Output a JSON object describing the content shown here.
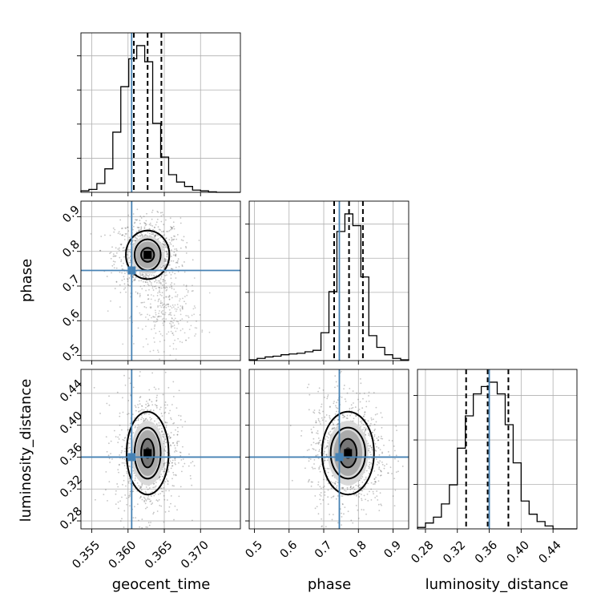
{
  "chart_data": {
    "type": "corner",
    "parameters": [
      "geocent_time",
      "phase",
      "luminosity_distance"
    ],
    "truths": {
      "geocent_time": 0.3605,
      "phase": 0.745,
      "luminosity_distance": 0.36
    },
    "truth_color": "#4682b4",
    "ranges": {
      "geocent_time": [
        0.3535,
        0.3755
      ],
      "phase": [
        0.485,
        0.945
      ],
      "luminosity_distance": [
        0.27,
        0.47
      ]
    },
    "ticks": {
      "geocent_time": [
        "0.355",
        "0.360",
        "0.365",
        "0.370"
      ],
      "phase": [
        "0.5",
        "0.6",
        "0.7",
        "0.8",
        "0.9"
      ],
      "luminosity_distance": [
        "0.28",
        "0.32",
        "0.36",
        "0.40",
        "0.44"
      ]
    },
    "histograms": [
      {
        "parameter": "geocent_time",
        "bin_edges": [
          0.3535,
          0.3546,
          0.3557,
          0.3568,
          0.3579,
          0.359,
          0.3601,
          0.3612,
          0.3623,
          0.3634,
          0.3645,
          0.3656,
          0.3667,
          0.3678,
          0.3689,
          0.37,
          0.3711,
          0.3722,
          0.3733,
          0.3744,
          0.3755
        ],
        "density": [
          0.01,
          0.02,
          0.06,
          0.16,
          0.41,
          0.72,
          0.91,
          1.0,
          0.89,
          0.47,
          0.24,
          0.12,
          0.07,
          0.04,
          0.015,
          0.01,
          0.003,
          0,
          0,
          0
        ],
        "quantiles": [
          0.3608,
          0.3627,
          0.3646
        ]
      },
      {
        "parameter": "phase",
        "bin_edges": [
          0.485,
          0.508,
          0.531,
          0.554,
          0.577,
          0.6,
          0.623,
          0.646,
          0.669,
          0.692,
          0.715,
          0.738,
          0.761,
          0.784,
          0.807,
          0.83,
          0.853,
          0.876,
          0.899,
          0.922,
          0.945
        ],
        "density": [
          0.005,
          0.015,
          0.025,
          0.03,
          0.04,
          0.045,
          0.05,
          0.06,
          0.07,
          0.19,
          0.47,
          0.88,
          1.0,
          0.92,
          0.57,
          0.17,
          0.09,
          0.04,
          0.015,
          0.005
        ],
        "quantiles": [
          0.73,
          0.773,
          0.813
        ]
      },
      {
        "parameter": "luminosity_distance",
        "bin_edges": [
          0.27,
          0.28,
          0.29,
          0.3,
          0.31,
          0.32,
          0.33,
          0.34,
          0.35,
          0.36,
          0.37,
          0.38,
          0.39,
          0.4,
          0.41,
          0.42,
          0.43,
          0.44,
          0.45,
          0.46,
          0.47
        ],
        "density": [
          0.01,
          0.04,
          0.08,
          0.17,
          0.3,
          0.55,
          0.77,
          0.92,
          0.97,
          1.0,
          0.92,
          0.71,
          0.45,
          0.19,
          0.1,
          0.05,
          0.02,
          0,
          0,
          0
        ],
        "quantiles": [
          0.331,
          0.358,
          0.384
        ]
      }
    ],
    "joint_panels": [
      {
        "x": "geocent_time",
        "y": "phase",
        "peak": [
          0.3627,
          0.79
        ],
        "contour_half_widths": [
          [
            0.0009,
            0.02
          ],
          [
            0.0018,
            0.045
          ],
          [
            0.003,
            0.07
          ]
        ]
      },
      {
        "x": "geocent_time",
        "y": "luminosity_distance",
        "peak": [
          0.3627,
          0.365
        ],
        "contour_half_widths": [
          [
            0.0009,
            0.018
          ],
          [
            0.0018,
            0.032
          ],
          [
            0.0029,
            0.052
          ]
        ]
      },
      {
        "x": "phase",
        "y": "luminosity_distance",
        "peak": [
          0.77,
          0.365
        ],
        "contour_half_widths": [
          [
            0.025,
            0.018
          ],
          [
            0.05,
            0.032
          ],
          [
            0.075,
            0.052
          ]
        ]
      }
    ]
  }
}
